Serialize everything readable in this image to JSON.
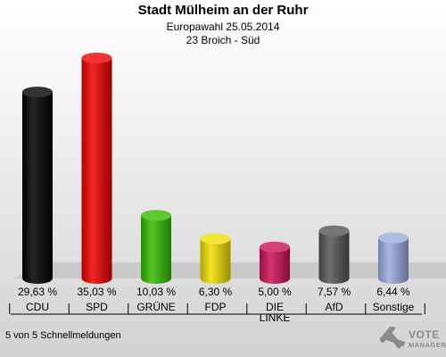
{
  "header": {
    "title": "Stadt Mülheim an der Ruhr",
    "subtitle1": "Europawahl 25.05.2014",
    "subtitle2": "23 Broich - Süd"
  },
  "footer": {
    "note": "5 von 5 Schnellmeldungen",
    "logo_line1": "VOTE",
    "logo_line2": "MANAGER"
  },
  "chart_data": {
    "type": "bar",
    "title": "Stadt Mülheim an der Ruhr",
    "categories": [
      "CDU",
      "SPD",
      "GRÜNE",
      "FDP",
      "DIE LINKE",
      "AfD",
      "Sonstige"
    ],
    "category_lines": [
      [
        "CDU"
      ],
      [
        "SPD"
      ],
      [
        "GRÜNE"
      ],
      [
        "FDP"
      ],
      [
        "DIE",
        "LINKE"
      ],
      [
        "AfD"
      ],
      [
        "Sonstige"
      ]
    ],
    "values": [
      29.63,
      35.03,
      10.03,
      6.3,
      5.0,
      7.57,
      6.44
    ],
    "value_labels": [
      "29,63 %",
      "35,03 %",
      "10,03 %",
      "6,30 %",
      "5,00 %",
      "7,57 %",
      "6,44 %"
    ],
    "colors": [
      "#000000",
      "#ee0000",
      "#33bb00",
      "#eedd00",
      "#cc1155",
      "#555555",
      "#99aadd"
    ],
    "grid": false
  }
}
